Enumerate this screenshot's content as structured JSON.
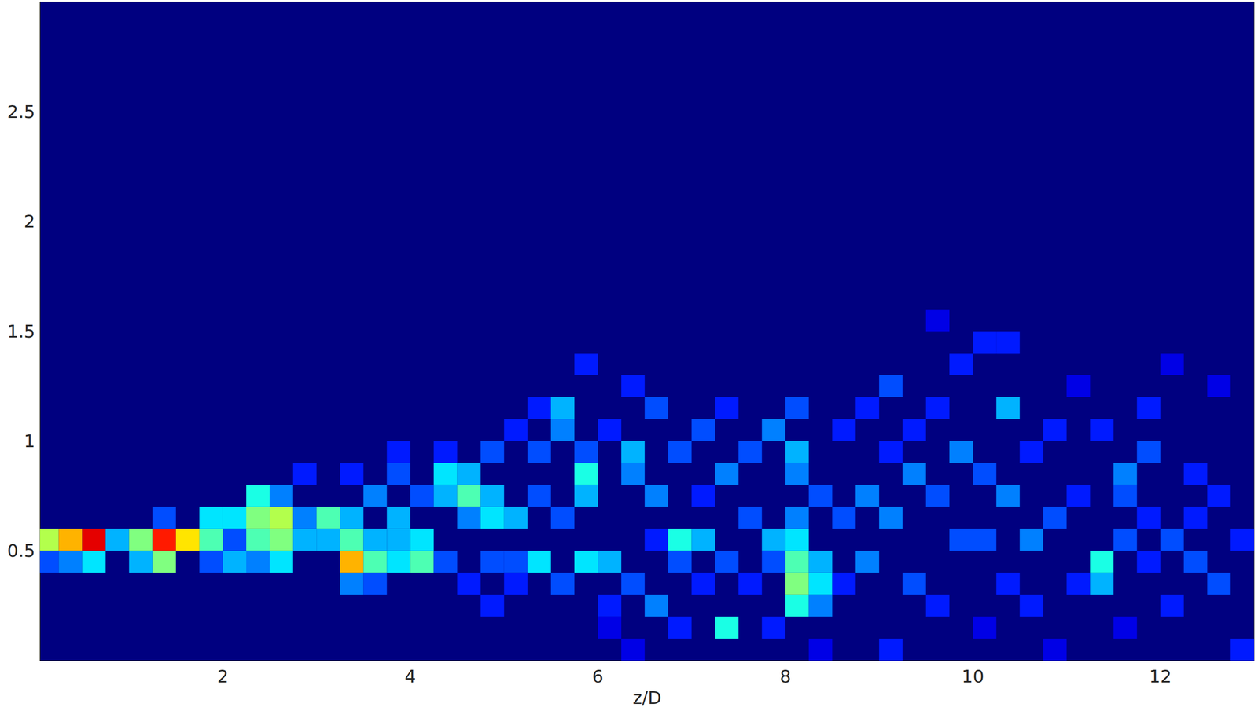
{
  "chart_data": {
    "type": "heatmap",
    "xlabel": "z/D",
    "xlim": [
      0.05,
      13
    ],
    "ylim": [
      0,
      3
    ],
    "xticks": [
      2,
      4,
      6,
      8,
      10,
      12
    ],
    "yticks": [
      0.5,
      1,
      1.5,
      2,
      2.5
    ],
    "grid": false,
    "color_range": [
      0,
      1
    ],
    "cell_size": [
      0.25,
      0.1
    ],
    "cells": [
      [
        0.125,
        0.55,
        0.55
      ],
      [
        0.125,
        0.45,
        0.2
      ],
      [
        0.375,
        0.55,
        0.7
      ],
      [
        0.375,
        0.45,
        0.25
      ],
      [
        0.625,
        0.55,
        0.9
      ],
      [
        0.625,
        0.45,
        0.35
      ],
      [
        0.875,
        0.55,
        0.3
      ],
      [
        1.125,
        0.55,
        0.5
      ],
      [
        1.125,
        0.45,
        0.3
      ],
      [
        1.375,
        0.55,
        0.85
      ],
      [
        1.375,
        0.45,
        0.5
      ],
      [
        1.375,
        0.65,
        0.2
      ],
      [
        1.625,
        0.55,
        0.65
      ],
      [
        1.875,
        0.55,
        0.45
      ],
      [
        1.875,
        0.65,
        0.35
      ],
      [
        1.875,
        0.45,
        0.2
      ],
      [
        2.125,
        0.65,
        0.35
      ],
      [
        2.125,
        0.45,
        0.3
      ],
      [
        2.125,
        0.55,
        0.2
      ],
      [
        2.375,
        0.65,
        0.5
      ],
      [
        2.375,
        0.75,
        0.4
      ],
      [
        2.375,
        0.55,
        0.45
      ],
      [
        2.375,
        0.45,
        0.25
      ],
      [
        2.625,
        0.65,
        0.55
      ],
      [
        2.625,
        0.55,
        0.5
      ],
      [
        2.625,
        0.45,
        0.35
      ],
      [
        2.625,
        0.75,
        0.25
      ],
      [
        2.875,
        0.55,
        0.3
      ],
      [
        2.875,
        0.65,
        0.25
      ],
      [
        2.875,
        0.85,
        0.15
      ],
      [
        3.125,
        0.65,
        0.45
      ],
      [
        3.125,
        0.55,
        0.3
      ],
      [
        3.375,
        0.45,
        0.7
      ],
      [
        3.375,
        0.55,
        0.45
      ],
      [
        3.375,
        0.65,
        0.3
      ],
      [
        3.375,
        0.35,
        0.25
      ],
      [
        3.375,
        0.85,
        0.15
      ],
      [
        3.625,
        0.45,
        0.45
      ],
      [
        3.625,
        0.55,
        0.3
      ],
      [
        3.625,
        0.75,
        0.25
      ],
      [
        3.625,
        0.35,
        0.2
      ],
      [
        3.875,
        0.55,
        0.3
      ],
      [
        3.875,
        0.65,
        0.3
      ],
      [
        3.875,
        0.45,
        0.35
      ],
      [
        3.875,
        0.85,
        0.2
      ],
      [
        3.875,
        0.95,
        0.15
      ],
      [
        4.125,
        0.45,
        0.45
      ],
      [
        4.125,
        0.55,
        0.35
      ],
      [
        4.125,
        0.75,
        0.2
      ],
      [
        4.375,
        0.85,
        0.35
      ],
      [
        4.375,
        0.75,
        0.3
      ],
      [
        4.375,
        0.45,
        0.2
      ],
      [
        4.375,
        0.95,
        0.15
      ],
      [
        4.625,
        0.75,
        0.45
      ],
      [
        4.625,
        0.65,
        0.25
      ],
      [
        4.625,
        0.85,
        0.3
      ],
      [
        4.625,
        0.35,
        0.15
      ],
      [
        4.875,
        0.65,
        0.35
      ],
      [
        4.875,
        0.75,
        0.3
      ],
      [
        4.875,
        0.95,
        0.2
      ],
      [
        4.875,
        0.45,
        0.2
      ],
      [
        4.875,
        0.25,
        0.15
      ],
      [
        5.125,
        0.65,
        0.3
      ],
      [
        5.125,
        0.45,
        0.2
      ],
      [
        5.125,
        1.05,
        0.15
      ],
      [
        5.125,
        0.35,
        0.15
      ],
      [
        5.375,
        0.45,
        0.35
      ],
      [
        5.375,
        0.75,
        0.2
      ],
      [
        5.375,
        0.95,
        0.2
      ],
      [
        5.375,
        1.15,
        0.15
      ],
      [
        5.625,
        1.15,
        0.3
      ],
      [
        5.625,
        1.05,
        0.25
      ],
      [
        5.625,
        0.65,
        0.2
      ],
      [
        5.625,
        0.35,
        0.2
      ],
      [
        5.875,
        0.85,
        0.4
      ],
      [
        5.875,
        0.75,
        0.3
      ],
      [
        5.875,
        0.45,
        0.35
      ],
      [
        5.875,
        0.95,
        0.2
      ],
      [
        5.875,
        1.35,
        0.15
      ],
      [
        6.125,
        0.45,
        0.3
      ],
      [
        6.125,
        0.25,
        0.15
      ],
      [
        6.125,
        1.05,
        0.15
      ],
      [
        6.125,
        0.15,
        0.1
      ],
      [
        6.375,
        0.95,
        0.3
      ],
      [
        6.375,
        0.85,
        0.25
      ],
      [
        6.375,
        0.35,
        0.2
      ],
      [
        6.375,
        1.25,
        0.15
      ],
      [
        6.375,
        0.05,
        0.1
      ],
      [
        6.625,
        0.75,
        0.25
      ],
      [
        6.625,
        1.15,
        0.2
      ],
      [
        6.625,
        0.25,
        0.25
      ],
      [
        6.625,
        0.55,
        0.15
      ],
      [
        6.875,
        0.55,
        0.4
      ],
      [
        6.875,
        0.45,
        0.2
      ],
      [
        6.875,
        0.95,
        0.2
      ],
      [
        6.875,
        0.15,
        0.15
      ],
      [
        7.125,
        0.55,
        0.3
      ],
      [
        7.125,
        1.05,
        0.2
      ],
      [
        7.125,
        0.35,
        0.15
      ],
      [
        7.125,
        0.75,
        0.15
      ],
      [
        7.375,
        0.15,
        0.4
      ],
      [
        7.375,
        0.85,
        0.25
      ],
      [
        7.375,
        0.45,
        0.2
      ],
      [
        7.375,
        1.15,
        0.15
      ],
      [
        7.625,
        0.65,
        0.2
      ],
      [
        7.625,
        0.95,
        0.2
      ],
      [
        7.625,
        0.35,
        0.15
      ],
      [
        7.875,
        0.55,
        0.3
      ],
      [
        7.875,
        1.05,
        0.25
      ],
      [
        7.875,
        0.15,
        0.15
      ],
      [
        7.875,
        0.45,
        0.2
      ],
      [
        8.125,
        0.35,
        0.5
      ],
      [
        8.125,
        0.45,
        0.45
      ],
      [
        8.125,
        0.25,
        0.4
      ],
      [
        8.125,
        0.55,
        0.35
      ],
      [
        8.125,
        0.95,
        0.3
      ],
      [
        8.125,
        0.85,
        0.25
      ],
      [
        8.125,
        0.65,
        0.25
      ],
      [
        8.125,
        1.15,
        0.2
      ],
      [
        8.375,
        0.35,
        0.35
      ],
      [
        8.375,
        0.45,
        0.3
      ],
      [
        8.375,
        0.25,
        0.25
      ],
      [
        8.375,
        0.75,
        0.2
      ],
      [
        8.375,
        0.05,
        0.1
      ],
      [
        8.625,
        0.65,
        0.2
      ],
      [
        8.625,
        1.05,
        0.15
      ],
      [
        8.625,
        0.35,
        0.15
      ],
      [
        8.875,
        0.45,
        0.25
      ],
      [
        8.875,
        0.75,
        0.25
      ],
      [
        8.875,
        1.15,
        0.15
      ],
      [
        9.125,
        0.65,
        0.25
      ],
      [
        9.125,
        0.05,
        0.15
      ],
      [
        9.125,
        1.25,
        0.2
      ],
      [
        9.125,
        0.95,
        0.15
      ],
      [
        9.375,
        0.85,
        0.25
      ],
      [
        9.375,
        0.35,
        0.2
      ],
      [
        9.375,
        1.05,
        0.15
      ],
      [
        9.625,
        0.25,
        0.15
      ],
      [
        9.625,
        0.75,
        0.2
      ],
      [
        9.625,
        1.15,
        0.15
      ],
      [
        9.625,
        1.55,
        0.1
      ],
      [
        9.875,
        0.95,
        0.25
      ],
      [
        9.875,
        0.55,
        0.2
      ],
      [
        9.875,
        1.35,
        0.15
      ],
      [
        10.125,
        0.55,
        0.2
      ],
      [
        10.125,
        0.85,
        0.2
      ],
      [
        10.125,
        1.45,
        0.15
      ],
      [
        10.125,
        0.15,
        0.1
      ],
      [
        10.375,
        1.15,
        0.3
      ],
      [
        10.375,
        0.75,
        0.25
      ],
      [
        10.375,
        0.35,
        0.15
      ],
      [
        10.375,
        1.45,
        0.15
      ],
      [
        10.625,
        0.55,
        0.25
      ],
      [
        10.625,
        0.95,
        0.15
      ],
      [
        10.625,
        0.25,
        0.15
      ],
      [
        10.875,
        0.65,
        0.2
      ],
      [
        10.875,
        1.05,
        0.15
      ],
      [
        10.875,
        0.05,
        0.1
      ],
      [
        11.125,
        0.75,
        0.15
      ],
      [
        11.125,
        0.35,
        0.15
      ],
      [
        11.125,
        1.25,
        0.1
      ],
      [
        11.375,
        0.45,
        0.4
      ],
      [
        11.375,
        0.35,
        0.3
      ],
      [
        11.375,
        1.05,
        0.15
      ],
      [
        11.625,
        0.85,
        0.25
      ],
      [
        11.625,
        0.55,
        0.2
      ],
      [
        11.625,
        0.75,
        0.2
      ],
      [
        11.625,
        0.15,
        0.1
      ],
      [
        11.875,
        0.95,
        0.2
      ],
      [
        11.875,
        0.45,
        0.15
      ],
      [
        11.875,
        0.65,
        0.15
      ],
      [
        11.875,
        1.15,
        0.15
      ],
      [
        12.125,
        0.55,
        0.2
      ],
      [
        12.125,
        0.25,
        0.15
      ],
      [
        12.125,
        1.35,
        0.1
      ],
      [
        12.375,
        0.45,
        0.2
      ],
      [
        12.375,
        0.85,
        0.15
      ],
      [
        12.375,
        0.65,
        0.15
      ],
      [
        12.625,
        0.35,
        0.2
      ],
      [
        12.625,
        0.75,
        0.15
      ],
      [
        12.625,
        1.25,
        0.1
      ],
      [
        12.875,
        0.05,
        0.15
      ],
      [
        12.875,
        0.55,
        0.15
      ]
    ]
  }
}
